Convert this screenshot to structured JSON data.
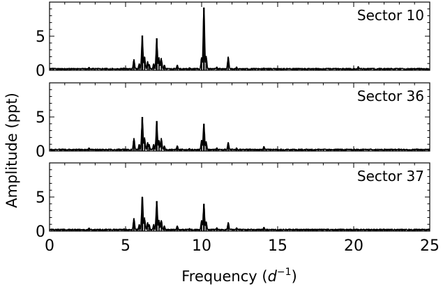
{
  "chart_data": {
    "type": "line",
    "xlabel_text": "Frequency (",
    "xlabel_symbol": "d",
    "xlabel_exp": "−1",
    "xlabel_close": ")",
    "ylabel": "Amplitude (ppt)",
    "xlim": [
      0,
      25
    ],
    "ylim": [
      0,
      10
    ],
    "x_ticks": [
      0,
      5,
      10,
      15,
      20,
      25
    ],
    "x_tick_labels": [
      "0",
      "5",
      "10",
      "15",
      "20",
      "25"
    ],
    "y_ticks": [
      0,
      5
    ],
    "y_tick_labels": [
      "0",
      "5"
    ],
    "grid": false,
    "line_color": "#000000",
    "panels": [
      {
        "label": "Sector 10",
        "noise": 0.3,
        "peaks": [
          {
            "x": 1.3,
            "y": 0.3
          },
          {
            "x": 2.6,
            "y": 0.45
          },
          {
            "x": 4.9,
            "y": 0.35
          },
          {
            "x": 5.55,
            "y": 1.6
          },
          {
            "x": 5.9,
            "y": 1.0
          },
          {
            "x": 6.1,
            "y": 5.1
          },
          {
            "x": 6.25,
            "y": 2.0
          },
          {
            "x": 6.45,
            "y": 1.3
          },
          {
            "x": 6.55,
            "y": 0.9
          },
          {
            "x": 6.85,
            "y": 1.0
          },
          {
            "x": 7.05,
            "y": 4.7
          },
          {
            "x": 7.2,
            "y": 1.9
          },
          {
            "x": 7.35,
            "y": 1.8
          },
          {
            "x": 7.55,
            "y": 0.8
          },
          {
            "x": 8.4,
            "y": 0.8
          },
          {
            "x": 9.2,
            "y": 0.4
          },
          {
            "x": 10.0,
            "y": 1.9
          },
          {
            "x": 10.15,
            "y": 9.2
          },
          {
            "x": 10.3,
            "y": 2.1
          },
          {
            "x": 11.0,
            "y": 0.5
          },
          {
            "x": 11.75,
            "y": 2.0
          },
          {
            "x": 12.3,
            "y": 0.5
          },
          {
            "x": 14.1,
            "y": 0.35
          },
          {
            "x": 15.2,
            "y": 0.25
          },
          {
            "x": 17.5,
            "y": 0.2
          },
          {
            "x": 20.3,
            "y": 0.55
          }
        ]
      },
      {
        "label": "Sector 36",
        "noise": 0.3,
        "peaks": [
          {
            "x": 1.3,
            "y": 0.3
          },
          {
            "x": 2.6,
            "y": 0.5
          },
          {
            "x": 4.9,
            "y": 0.35
          },
          {
            "x": 5.55,
            "y": 1.9
          },
          {
            "x": 5.9,
            "y": 1.0
          },
          {
            "x": 6.1,
            "y": 5.0
          },
          {
            "x": 6.25,
            "y": 2.0
          },
          {
            "x": 6.45,
            "y": 1.3
          },
          {
            "x": 6.55,
            "y": 1.0
          },
          {
            "x": 6.85,
            "y": 1.0
          },
          {
            "x": 7.05,
            "y": 4.4
          },
          {
            "x": 7.2,
            "y": 1.6
          },
          {
            "x": 7.35,
            "y": 1.9
          },
          {
            "x": 7.55,
            "y": 0.8
          },
          {
            "x": 8.4,
            "y": 0.8
          },
          {
            "x": 9.2,
            "y": 0.4
          },
          {
            "x": 10.0,
            "y": 1.6
          },
          {
            "x": 10.15,
            "y": 4.0
          },
          {
            "x": 10.3,
            "y": 1.4
          },
          {
            "x": 11.0,
            "y": 0.5
          },
          {
            "x": 11.75,
            "y": 1.3
          },
          {
            "x": 12.3,
            "y": 0.5
          },
          {
            "x": 14.1,
            "y": 0.7
          },
          {
            "x": 15.2,
            "y": 0.25
          }
        ]
      },
      {
        "label": "Sector 37",
        "noise": 0.3,
        "peaks": [
          {
            "x": 1.3,
            "y": 0.3
          },
          {
            "x": 2.6,
            "y": 0.5
          },
          {
            "x": 4.9,
            "y": 0.35
          },
          {
            "x": 5.55,
            "y": 1.9
          },
          {
            "x": 5.9,
            "y": 1.0
          },
          {
            "x": 6.1,
            "y": 5.0
          },
          {
            "x": 6.25,
            "y": 2.0
          },
          {
            "x": 6.45,
            "y": 1.3
          },
          {
            "x": 6.55,
            "y": 1.0
          },
          {
            "x": 6.85,
            "y": 1.0
          },
          {
            "x": 7.05,
            "y": 4.4
          },
          {
            "x": 7.2,
            "y": 1.6
          },
          {
            "x": 7.35,
            "y": 1.6
          },
          {
            "x": 7.55,
            "y": 0.8
          },
          {
            "x": 8.4,
            "y": 0.8
          },
          {
            "x": 9.2,
            "y": 0.4
          },
          {
            "x": 10.0,
            "y": 1.6
          },
          {
            "x": 10.15,
            "y": 4.0
          },
          {
            "x": 10.3,
            "y": 1.4
          },
          {
            "x": 11.0,
            "y": 0.5
          },
          {
            "x": 11.75,
            "y": 1.3
          },
          {
            "x": 12.3,
            "y": 0.5
          },
          {
            "x": 14.1,
            "y": 0.6
          },
          {
            "x": 15.2,
            "y": 0.25
          }
        ]
      }
    ]
  }
}
